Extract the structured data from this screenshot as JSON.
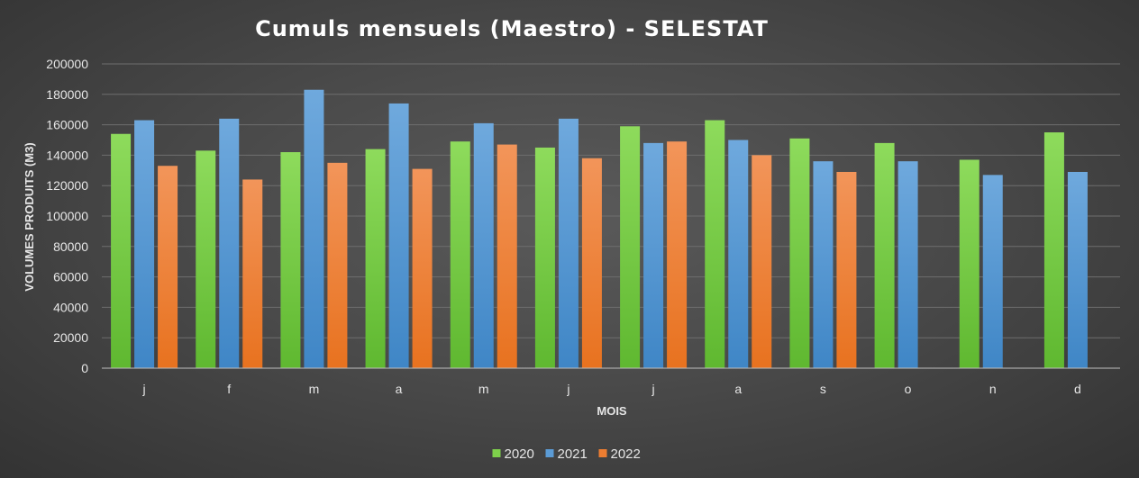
{
  "chart_data": {
    "type": "bar",
    "title": "Cumuls mensuels (Maestro) - SELESTAT",
    "xlabel": "MOIS",
    "ylabel": "VOLUMES PRODUITS (M3)",
    "ylim": [
      0,
      200000
    ],
    "yticks": [
      "0",
      "20000",
      "40000",
      "60000",
      "80000",
      "100000",
      "120000",
      "140000",
      "160000",
      "180000",
      "200000"
    ],
    "categories": [
      "j",
      "f",
      "m",
      "a",
      "m",
      "j",
      "j",
      "a",
      "s",
      "o",
      "n",
      "d"
    ],
    "grid": true,
    "legend_position": "bottom",
    "series": [
      {
        "name": "2020",
        "color": "#7ed04b",
        "values": [
          154000,
          143000,
          142000,
          144000,
          149000,
          145000,
          159000,
          163000,
          151000,
          148000,
          137000,
          155000
        ]
      },
      {
        "name": "2021",
        "color": "#5b9bd5",
        "values": [
          163000,
          164000,
          183000,
          174000,
          161000,
          164000,
          148000,
          150000,
          136000,
          136000,
          127000,
          129000
        ]
      },
      {
        "name": "2022",
        "color": "#ed7d31",
        "values": [
          133000,
          124000,
          135000,
          131000,
          147000,
          138000,
          149000,
          140000,
          129000,
          null,
          null,
          null
        ]
      }
    ]
  }
}
